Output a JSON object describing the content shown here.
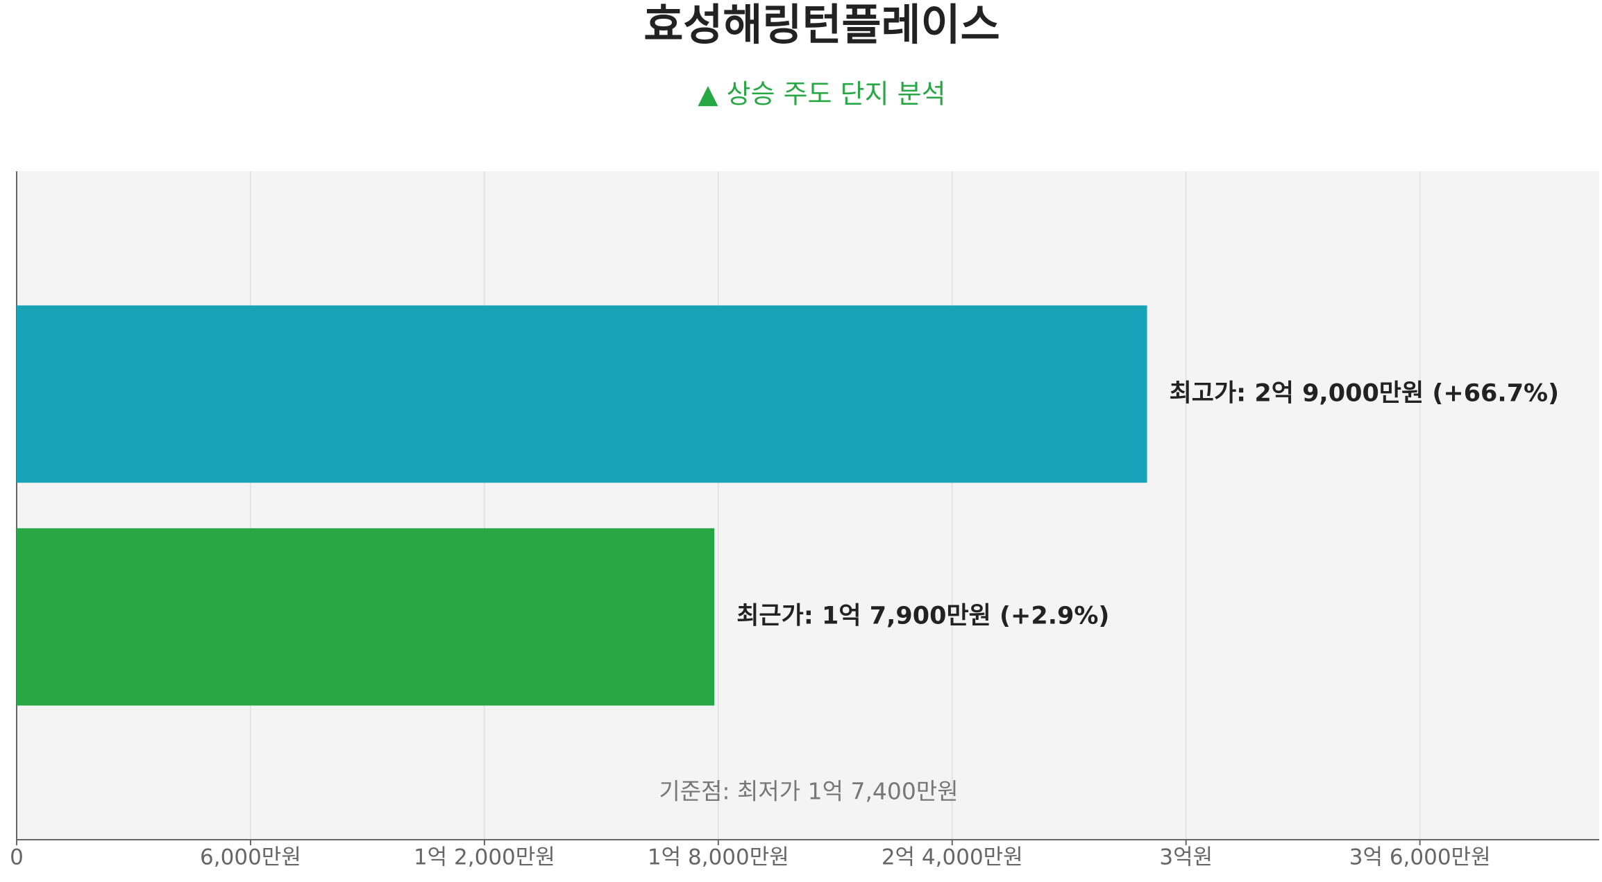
{
  "chart_data": {
    "type": "bar",
    "orientation": "horizontal",
    "title": "효성해링턴플레이스",
    "subtitle": "▲ 상승 주도 단지 분석",
    "categories": [
      null,
      null
    ],
    "values": [
      29000,
      17900
    ],
    "value_labels": [
      "최고가: 2억 9,000만원 (+66.7%)",
      "최근가: 1억 7,900만원 (+2.9%)"
    ],
    "colors": [
      "#17a2b8",
      "#28a745"
    ],
    "annotation": "기준점: 최저가 1억 7,400만원",
    "xlim": [
      0,
      40600
    ],
    "xticks": [
      0,
      {
        "value": 6000,
        "label": "6,000만원"
      },
      {
        "value": 12000,
        "label": "1억 2,000만원"
      },
      {
        "value": 18000,
        "label": "1억 8,000만원"
      },
      {
        "value": 24000,
        "label": "2억 4,000만원"
      },
      {
        "value": 30000,
        "label": "3억원"
      },
      {
        "value": 36000,
        "label": "3억 6,000만원"
      }
    ],
    "grid": true
  }
}
